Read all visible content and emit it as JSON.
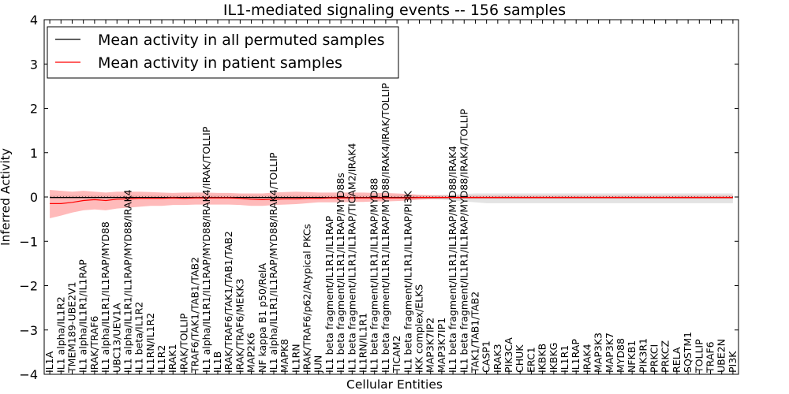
{
  "chart_data": {
    "type": "line",
    "title": "IL1-mediated signaling events -- 156 samples",
    "xlabel": "Cellular Entities",
    "ylabel": "Inferred Activity",
    "ylim": [
      -4,
      4
    ],
    "yticks": [
      -4,
      -3,
      -2,
      -1,
      0,
      1,
      2,
      3,
      4
    ],
    "grid": false,
    "legend_position": "top-left",
    "categories": [
      "IL1A",
      "IL1 alpha/IL1R2",
      "TMEM189-UBE2V1",
      "IL1 alpha/IL1R1/IL1RAP",
      "IRAK/TRAF6",
      "IL1 alpha/IL1R1/IL1RAP/MYD88",
      "UBC13/UEV1A",
      "IL1 alpha/IL1R1/IL1RAP/MYD88/IRAK4",
      "IL1 beta/IL1R2",
      "IL1RN/IL1R2",
      "IL1R2",
      "IRAK1",
      "IRAK/TOLLIP",
      "TRAF6/TAK1/TAB1/TAB2",
      "IL1 alpha/IL1R1/IL1RAP/MYD88/IRAK4/IRAK/TOLLIP",
      "IL1B",
      "IRAK/TRAF6/TAK1/TAB1/TAB2",
      "IRAK/TRAF6/MEKK3",
      "MAP2K6",
      "NF kappa B1 p50/RelA",
      "IL1 alpha/IL1R1/IL1RAP/MYD88/IRAK4/TOLLIP",
      "MAPK8",
      "IL1RN",
      "IRAK/TRAF6/p62/Atypical PKCs",
      "JUN",
      "IL1 beta fragment/IL1R1/IL1RAP",
      "IL1 beta fragment/IL1R1/IL1RAP/MYD88s",
      "IL1 beta fragment/IL1R1/IL1RAP/TICAM2/IRAK4",
      "IL1RN/IL1R1",
      "IL1 beta fragment/IL1R1/IL1RAP/MYD88",
      "IL1 beta fragment/IL1R1/IL1RAP/MYD88/IRAK4/IRAK/TOLLIP",
      "TICAM2",
      "IL1 beta fragment/IL1R1/IL1RAP/PI3K",
      "IKK complex/ELKS",
      "MAP3K7IP2",
      "MAP3K7IP1",
      "IL1 beta fragment/IL1R1/IL1RAP/MYD88/IRAK4",
      "IL1 beta fragment/IL1R1/IL1RAP/MYD88/IRAK4/TOLLIP",
      "TAK1/TAB1/TAB2",
      "CASP1",
      "IRAK3",
      "PIK3CA",
      "CHUK",
      "ERC1",
      "IKBKB",
      "IKBKG",
      "IL1R1",
      "IL1RAP",
      "IRAK4",
      "MAP3K3",
      "MAP3K7",
      "MYD88",
      "NFKB1",
      "PIK3R1",
      "PRKCI",
      "PRKCZ",
      "RELA",
      "SQSTM1",
      "TOLLIP",
      "TRAF6",
      "UBE2N",
      "PI3K"
    ],
    "series": [
      {
        "name": "Mean activity in all permuted samples",
        "color": "#000000",
        "values": [
          -0.01,
          -0.01,
          -0.01,
          -0.01,
          -0.01,
          -0.01,
          -0.01,
          -0.01,
          -0.01,
          -0.01,
          -0.01,
          -0.01,
          -0.01,
          -0.01,
          -0.01,
          -0.01,
          -0.01,
          -0.01,
          -0.01,
          -0.01,
          -0.01,
          -0.01,
          -0.01,
          -0.01,
          -0.01,
          -0.01,
          -0.01,
          -0.01,
          -0.01,
          -0.01,
          -0.01,
          -0.01,
          -0.01,
          -0.01,
          -0.01,
          -0.01,
          -0.01,
          -0.01,
          -0.01,
          -0.01,
          -0.01,
          -0.01,
          -0.01,
          -0.01,
          -0.01,
          -0.01,
          -0.01,
          -0.01,
          -0.01,
          -0.01,
          -0.01,
          -0.01,
          -0.01,
          -0.01,
          -0.01,
          -0.01,
          -0.01,
          -0.01,
          -0.01,
          -0.01,
          -0.01,
          -0.01
        ],
        "band_lower": [
          -0.05,
          -0.05,
          -0.05,
          -0.05,
          -0.05,
          -0.05,
          -0.05,
          -0.05,
          -0.05,
          -0.05,
          -0.05,
          -0.05,
          -0.05,
          -0.05,
          -0.05,
          -0.05,
          -0.05,
          -0.05,
          -0.05,
          -0.05,
          -0.05,
          -0.05,
          -0.05,
          -0.05,
          -0.05,
          -0.05,
          -0.05,
          -0.05,
          -0.05,
          -0.05,
          -0.05,
          -0.05,
          -0.05,
          -0.05,
          -0.05,
          -0.06,
          -0.08,
          -0.1,
          -0.12,
          -0.14,
          -0.14,
          -0.14,
          -0.14,
          -0.14,
          -0.14,
          -0.14,
          -0.14,
          -0.14,
          -0.14,
          -0.14,
          -0.14,
          -0.14,
          -0.14,
          -0.14,
          -0.14,
          -0.14,
          -0.14,
          -0.14,
          -0.14,
          -0.14,
          -0.14,
          -0.14
        ],
        "band_upper": [
          0.04,
          0.04,
          0.04,
          0.04,
          0.04,
          0.04,
          0.04,
          0.04,
          0.04,
          0.04,
          0.04,
          0.04,
          0.04,
          0.04,
          0.04,
          0.04,
          0.04,
          0.04,
          0.04,
          0.04,
          0.04,
          0.04,
          0.04,
          0.04,
          0.04,
          0.04,
          0.04,
          0.04,
          0.04,
          0.04,
          0.04,
          0.04,
          0.04,
          0.04,
          0.04,
          0.05,
          0.06,
          0.07,
          0.08,
          0.08,
          0.08,
          0.08,
          0.08,
          0.08,
          0.08,
          0.08,
          0.08,
          0.08,
          0.08,
          0.08,
          0.08,
          0.08,
          0.08,
          0.08,
          0.08,
          0.08,
          0.08,
          0.08,
          0.08,
          0.08,
          0.08,
          0.08
        ]
      },
      {
        "name": "Mean activity in patient samples",
        "color": "#ff0000",
        "values": [
          -0.15,
          -0.15,
          -0.12,
          -0.08,
          -0.06,
          -0.08,
          -0.05,
          -0.04,
          -0.03,
          -0.03,
          -0.03,
          -0.02,
          -0.03,
          -0.02,
          -0.02,
          -0.02,
          -0.02,
          -0.03,
          -0.05,
          -0.06,
          -0.05,
          -0.04,
          -0.04,
          -0.03,
          -0.03,
          -0.02,
          -0.02,
          -0.02,
          -0.02,
          -0.02,
          -0.02,
          -0.02,
          -0.02,
          -0.01,
          -0.01,
          -0.01,
          -0.01,
          -0.01,
          -0.01,
          -0.01,
          -0.01,
          -0.01,
          -0.01,
          -0.01,
          -0.01,
          -0.01,
          -0.01,
          -0.01,
          -0.01,
          -0.01,
          -0.01,
          -0.01,
          -0.01,
          -0.01,
          -0.01,
          -0.01,
          -0.01,
          -0.01,
          -0.01,
          -0.01,
          -0.01,
          -0.01
        ],
        "band_lower": [
          -0.48,
          -0.42,
          -0.35,
          -0.3,
          -0.28,
          -0.3,
          -0.26,
          -0.24,
          -0.22,
          -0.2,
          -0.2,
          -0.18,
          -0.18,
          -0.17,
          -0.17,
          -0.17,
          -0.17,
          -0.18,
          -0.2,
          -0.2,
          -0.18,
          -0.17,
          -0.16,
          -0.14,
          -0.12,
          -0.12,
          -0.12,
          -0.11,
          -0.11,
          -0.1,
          -0.1,
          -0.09,
          -0.08,
          -0.06,
          -0.05,
          -0.04,
          -0.04,
          -0.04,
          -0.04,
          -0.04,
          -0.04,
          -0.04,
          -0.04,
          -0.04,
          -0.04,
          -0.04,
          -0.04,
          -0.04,
          -0.04,
          -0.04,
          -0.04,
          -0.04,
          -0.04,
          -0.04,
          -0.04,
          -0.04,
          -0.04,
          -0.04,
          -0.04,
          -0.04,
          -0.04,
          -0.04
        ],
        "band_upper": [
          0.16,
          0.14,
          0.12,
          0.14,
          0.12,
          0.1,
          0.12,
          0.12,
          0.12,
          0.11,
          0.1,
          0.09,
          0.1,
          0.1,
          0.1,
          0.09,
          0.09,
          0.08,
          0.08,
          0.08,
          0.1,
          0.11,
          0.12,
          0.11,
          0.1,
          0.1,
          0.1,
          0.1,
          0.1,
          0.09,
          0.09,
          0.08,
          0.07,
          0.05,
          0.04,
          0.03,
          0.03,
          0.03,
          0.03,
          0.03,
          0.03,
          0.03,
          0.03,
          0.03,
          0.03,
          0.03,
          0.03,
          0.03,
          0.03,
          0.03,
          0.03,
          0.03,
          0.03,
          0.03,
          0.03,
          0.03,
          0.03,
          0.03,
          0.03,
          0.03,
          0.03,
          0.03
        ]
      }
    ],
    "reference_line": {
      "y": 0,
      "style": "dotted",
      "color": "#000000"
    },
    "band_colors": {
      "permuted": "#cccccc",
      "patient": "#ff6666"
    }
  }
}
